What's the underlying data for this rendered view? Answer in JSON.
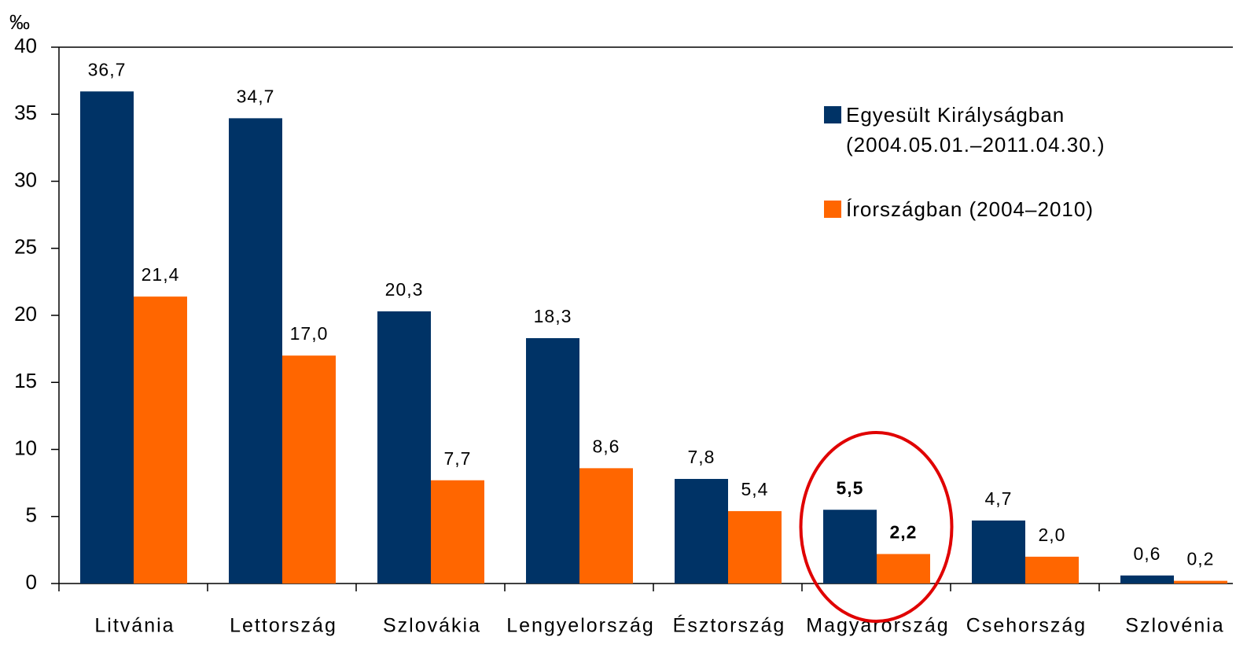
{
  "chart_data": {
    "type": "bar",
    "y_label": "‰",
    "categories": [
      "Litvánia",
      "Lettország",
      "Szlovákia",
      "Lengyelország",
      "Észtország",
      "Magyarország",
      "Csehország",
      "Szlovénia"
    ],
    "series": [
      {
        "name": "Egyesült Királyságban (2004.05.01.–2011.04.30.)",
        "color": "#003366",
        "values": [
          36.7,
          34.7,
          20.3,
          18.3,
          7.8,
          5.5,
          4.7,
          0.6
        ],
        "value_labels": [
          "36,7",
          "34,7",
          "20,3",
          "18,3",
          "7,8",
          "5,5",
          "4,7",
          "0,6"
        ]
      },
      {
        "name": "Írországban (2004–2010)",
        "color": "#ff6600",
        "values": [
          21.4,
          17.0,
          7.7,
          8.6,
          5.4,
          2.2,
          2.0,
          0.2
        ],
        "value_labels": [
          "21,4",
          "17,0",
          "7,7",
          "8,6",
          "5,4",
          "2,2",
          "2,0",
          "0,2"
        ]
      }
    ],
    "ylim": [
      0,
      40
    ],
    "yticks": [
      0,
      5,
      10,
      15,
      20,
      25,
      30,
      35,
      40
    ],
    "highlight_index": 5,
    "highlight_color": "#e00000",
    "legend": "upper right"
  }
}
